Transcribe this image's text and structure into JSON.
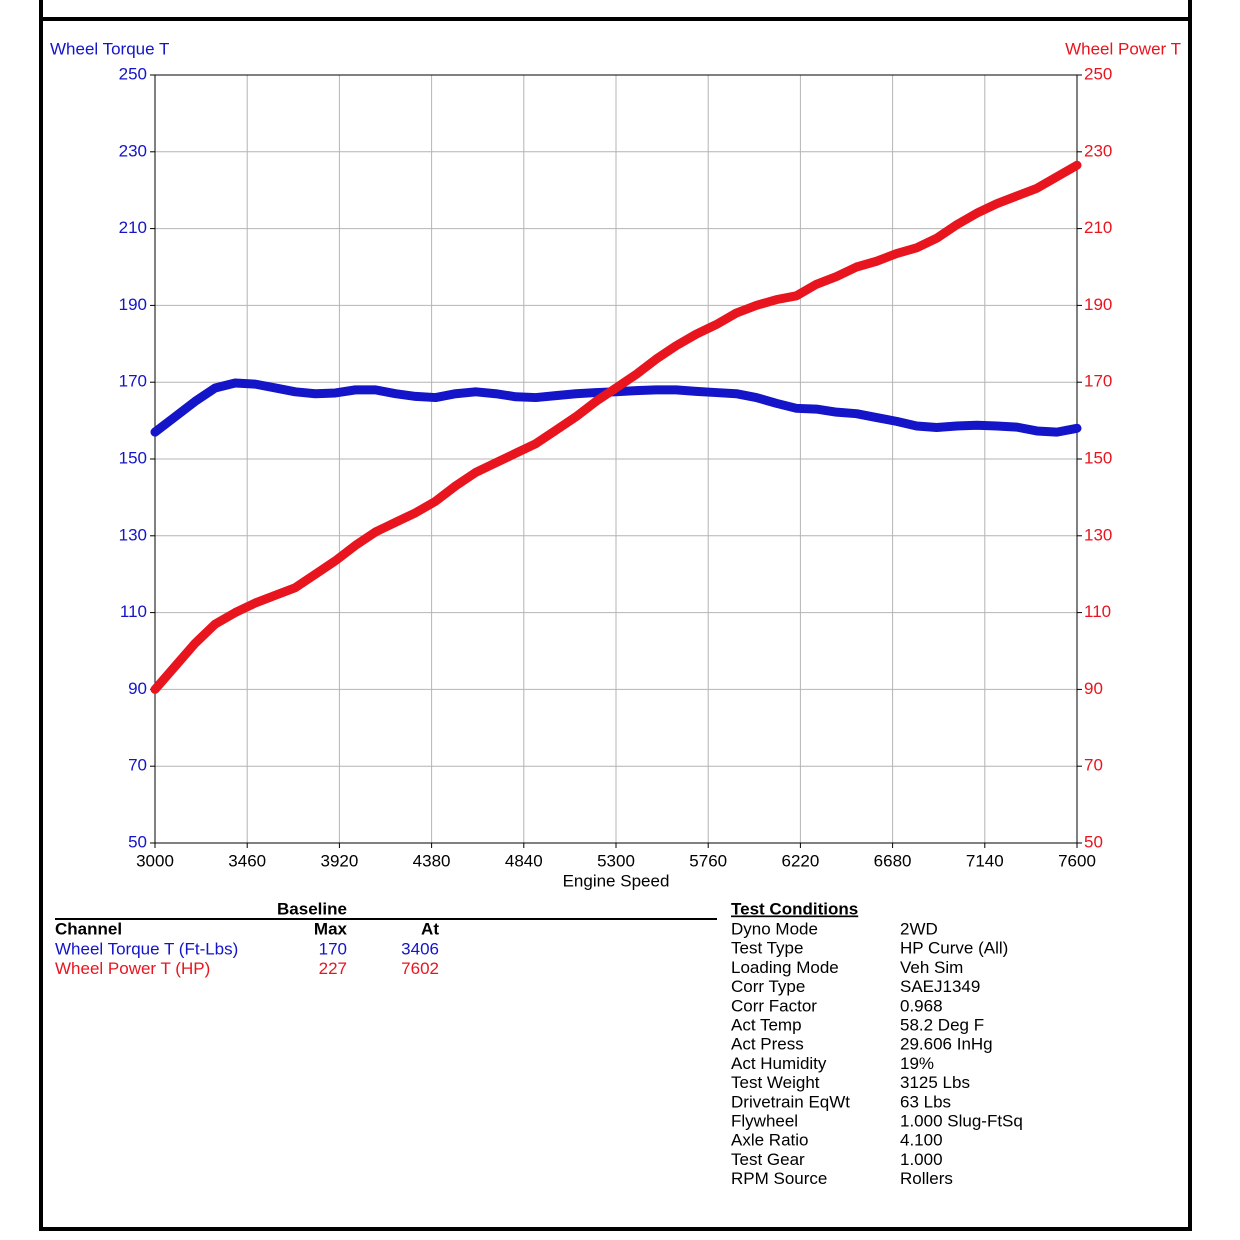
{
  "chart_data": {
    "type": "line",
    "x_label": "Engine Speed",
    "x": [
      3000,
      3100,
      3200,
      3300,
      3400,
      3500,
      3600,
      3700,
      3800,
      3900,
      4000,
      4100,
      4200,
      4300,
      4400,
      4500,
      4600,
      4700,
      4800,
      4900,
      5000,
      5100,
      5200,
      5300,
      5400,
      5500,
      5600,
      5700,
      5800,
      5900,
      6000,
      6100,
      6200,
      6300,
      6400,
      6500,
      6600,
      6700,
      6800,
      6900,
      7000,
      7100,
      7200,
      7300,
      7400,
      7500,
      7600
    ],
    "xlim": [
      3000,
      7600
    ],
    "xticks": [
      3000,
      3460,
      3920,
      4380,
      4840,
      5300,
      5760,
      6220,
      6680,
      7140,
      7600
    ],
    "ylim": [
      50,
      250
    ],
    "yticks": [
      50,
      70,
      90,
      110,
      130,
      150,
      170,
      190,
      210,
      230,
      250
    ],
    "y2lim": [
      50,
      250
    ],
    "y2ticks": [
      50,
      70,
      90,
      110,
      130,
      150,
      170,
      190,
      210,
      230,
      250
    ],
    "grid": true,
    "series": [
      {
        "name": "Wheel Torque T",
        "color": "#1414c8",
        "values": [
          157,
          161,
          165,
          168.5,
          169.8,
          169.5,
          168.5,
          167.5,
          167,
          167.2,
          168,
          168,
          167,
          166.3,
          166,
          167,
          167.5,
          167,
          166.2,
          166,
          166.5,
          167,
          167.3,
          167.5,
          167.8,
          168,
          168,
          167.6,
          167.3,
          167,
          166,
          164.5,
          163.2,
          163,
          162.2,
          161.8,
          160.8,
          159.8,
          158.6,
          158.2,
          158.6,
          158.8,
          158.6,
          158.3,
          157.3,
          157,
          158
        ]
      },
      {
        "name": "Wheel Power T",
        "color": "#e8141e",
        "axis": "y2",
        "values": [
          90,
          96,
          102,
          107,
          110,
          112.5,
          114.5,
          116.5,
          120,
          123.5,
          127.5,
          131,
          133.5,
          136,
          139,
          143,
          146.5,
          149,
          151.5,
          154,
          157.5,
          161,
          165,
          168.5,
          172,
          176,
          179.5,
          182.5,
          185,
          188,
          190,
          191.5,
          192.5,
          195.5,
          197.5,
          200,
          201.5,
          203.5,
          205,
          207.5,
          211,
          214,
          216.5,
          218.5,
          220.5,
          223.5,
          226.5
        ]
      }
    ]
  },
  "summary": {
    "title": "Baseline",
    "columns": [
      "Channel",
      "Max",
      "At"
    ],
    "rows": [
      [
        "Wheel Torque T (Ft-Lbs)",
        170,
        3406
      ],
      [
        "Wheel Power T (HP)",
        227,
        7602
      ]
    ]
  },
  "test_conditions": {
    "title": "Test Conditions",
    "rows": [
      [
        "Dyno Mode",
        "2WD"
      ],
      [
        "Test Type",
        "HP Curve (All)"
      ],
      [
        "Loading Mode",
        "Veh Sim"
      ],
      [
        "Corr Type",
        "SAEJ1349"
      ],
      [
        "Corr Factor",
        "0.968"
      ],
      [
        "Act Temp",
        "58.2 Deg F"
      ],
      [
        "Act Press",
        "29.606 InHg"
      ],
      [
        "Act Humidity",
        "19%"
      ],
      [
        "Test Weight",
        "3125 Lbs"
      ],
      [
        "Drivetrain EqWt",
        "63 Lbs"
      ],
      [
        "Flywheel",
        "1.000 Slug-FtSq"
      ],
      [
        "Axle Ratio",
        "4.100"
      ],
      [
        "Test Gear",
        "1.000"
      ],
      [
        "RPM Source",
        "Rollers"
      ]
    ]
  }
}
